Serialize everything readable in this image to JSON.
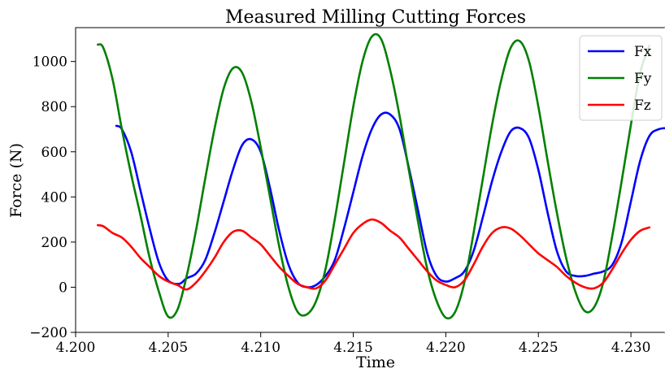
{
  "chart_data": {
    "type": "line",
    "title": "Measured Milling Cutting Forces",
    "xlabel": "Time",
    "ylabel": "Force  (N)",
    "xlim": [
      4.2,
      4.2325
    ],
    "ylim": [
      -200,
      1150
    ],
    "xticks": [
      "4.200",
      "4.205",
      "4.210",
      "4.215",
      "4.220",
      "4.225",
      "4.230"
    ],
    "xtick_values": [
      4.2,
      4.205,
      4.21,
      4.215,
      4.22,
      4.225,
      4.23
    ],
    "yticks": [
      "−200",
      "0",
      "200",
      "400",
      "600",
      "800",
      "1000"
    ],
    "ytick_values": [
      -200,
      0,
      200,
      400,
      600,
      800,
      1000
    ],
    "grid": false,
    "legend_position": "top-right",
    "series": [
      {
        "name": "Fx",
        "color": "#0000ff",
        "x": [
          4.2022,
          4.2025,
          4.203,
          4.2035,
          4.204,
          4.2045,
          4.205,
          4.2056,
          4.206,
          4.2065,
          4.207,
          4.2075,
          4.208,
          4.2085,
          4.209,
          4.2095,
          4.21,
          4.2105,
          4.211,
          4.2115,
          4.212,
          4.2125,
          4.213,
          4.2135,
          4.214,
          4.2145,
          4.215,
          4.2155,
          4.216,
          4.2165,
          4.217,
          4.2175,
          4.218,
          4.2185,
          4.219,
          4.2195,
          4.22,
          4.2205,
          4.221,
          4.2215,
          4.222,
          4.2225,
          4.223,
          4.2235,
          4.224,
          4.2245,
          4.225,
          4.2255,
          4.226,
          4.2265,
          4.227,
          4.2275,
          4.228,
          4.2285,
          4.229,
          4.2295,
          4.23,
          4.2305,
          4.231,
          4.2315,
          4.232
        ],
        "y": [
          715,
          700,
          600,
          430,
          260,
          110,
          30,
          15,
          40,
          60,
          120,
          240,
          380,
          520,
          630,
          655,
          600,
          440,
          250,
          100,
          20,
          0,
          10,
          50,
          120,
          260,
          420,
          580,
          700,
          765,
          765,
          700,
          530,
          340,
          150,
          50,
          25,
          40,
          70,
          160,
          310,
          470,
          600,
          690,
          705,
          660,
          520,
          330,
          160,
          70,
          50,
          50,
          60,
          70,
          100,
          200,
          380,
          560,
          670,
          700,
          705
        ]
      },
      {
        "name": "Fy",
        "color": "#008000",
        "x": [
          4.2012,
          4.2015,
          4.202,
          4.2025,
          4.203,
          4.2035,
          4.204,
          4.2045,
          4.205,
          4.2055,
          4.206,
          4.2065,
          4.207,
          4.2075,
          4.208,
          4.2085,
          4.209,
          4.2095,
          4.21,
          4.2105,
          4.211,
          4.2115,
          4.212,
          4.2125,
          4.213,
          4.2135,
          4.214,
          4.2145,
          4.215,
          4.2155,
          4.216,
          4.2165,
          4.217,
          4.2175,
          4.218,
          4.2185,
          4.219,
          4.2195,
          4.22,
          4.2205,
          4.221,
          4.2215,
          4.222,
          4.2225,
          4.223,
          4.2235,
          4.224,
          4.2245,
          4.225,
          4.2255,
          4.226,
          4.2265,
          4.227,
          4.2275,
          4.228,
          4.2285,
          4.229,
          4.2295,
          4.23,
          4.2305,
          4.231
        ],
        "y": [
          1075,
          1060,
          920,
          700,
          500,
          320,
          130,
          -20,
          -130,
          -100,
          50,
          250,
          480,
          700,
          880,
          970,
          950,
          820,
          620,
          400,
          180,
          0,
          -110,
          -120,
          -60,
          80,
          300,
          550,
          800,
          1000,
          1110,
          1100,
          960,
          760,
          520,
          290,
          80,
          -60,
          -135,
          -110,
          20,
          240,
          480,
          720,
          920,
          1060,
          1090,
          1000,
          800,
          560,
          330,
          130,
          -20,
          -105,
          -90,
          20,
          230,
          470,
          720,
          950,
          1070
        ]
      },
      {
        "name": "Fz",
        "color": "#ff0000",
        "x": [
          4.2012,
          4.2015,
          4.202,
          4.2025,
          4.203,
          4.2035,
          4.204,
          4.2045,
          4.205,
          4.2055,
          4.206,
          4.2065,
          4.207,
          4.2075,
          4.208,
          4.2085,
          4.209,
          4.2095,
          4.21,
          4.2105,
          4.211,
          4.2115,
          4.212,
          4.2125,
          4.213,
          4.2135,
          4.214,
          4.2145,
          4.215,
          4.2155,
          4.216,
          4.2165,
          4.217,
          4.2175,
          4.218,
          4.2185,
          4.219,
          4.2195,
          4.22,
          4.2205,
          4.221,
          4.2215,
          4.222,
          4.2225,
          4.223,
          4.2235,
          4.224,
          4.2245,
          4.225,
          4.2255,
          4.226,
          4.2265,
          4.227,
          4.2275,
          4.228,
          4.2285,
          4.229,
          4.2295,
          4.23,
          4.2305,
          4.231
        ],
        "y": [
          275,
          270,
          240,
          220,
          180,
          130,
          90,
          50,
          25,
          10,
          -10,
          20,
          70,
          130,
          200,
          245,
          250,
          220,
          190,
          140,
          90,
          50,
          15,
          0,
          -5,
          30,
          100,
          170,
          240,
          280,
          300,
          285,
          250,
          220,
          170,
          120,
          70,
          30,
          10,
          0,
          30,
          100,
          180,
          240,
          265,
          260,
          230,
          190,
          150,
          120,
          90,
          50,
          20,
          0,
          -5,
          20,
          80,
          150,
          210,
          250,
          265
        ]
      }
    ]
  }
}
